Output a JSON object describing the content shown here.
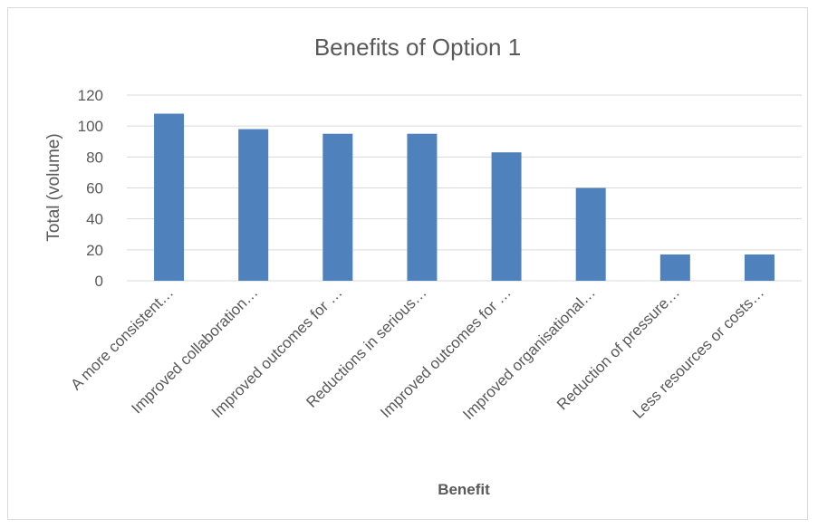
{
  "chart_data": {
    "type": "bar",
    "title": "Benefits of Option 1",
    "xlabel": "Benefit",
    "ylabel": "Total (volume)",
    "ylim": [
      0,
      120
    ],
    "yticks": [
      0,
      20,
      40,
      60,
      80,
      100,
      120
    ],
    "grid": true,
    "categories": [
      "A more consistent…",
      "Improved collaboration…",
      "Improved outcomes for …",
      "Reductions in serious…",
      "Improved outcomes for …",
      "Improved organisational…",
      "Reduction of pressure…",
      "Less resources or costs…"
    ],
    "values": [
      108,
      98,
      95,
      95,
      83,
      60,
      17,
      17
    ],
    "colors": {
      "bar": "#4f81bd"
    }
  }
}
